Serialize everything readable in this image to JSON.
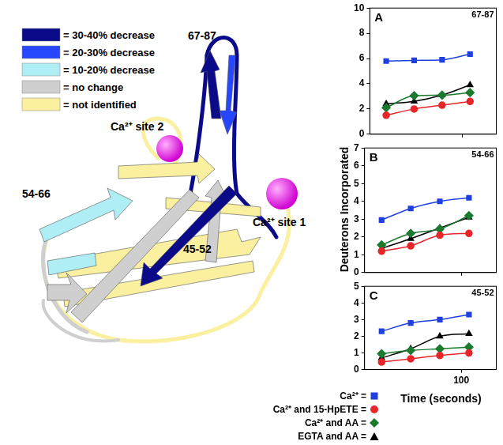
{
  "diagram": {
    "legend": [
      {
        "label": "= 30-40% decrease",
        "color": "#0b0b8a"
      },
      {
        "label": "= 20-30% decrease",
        "color": "#2747ff"
      },
      {
        "label": "= 10-20% decrease",
        "color": "#aeeef4"
      },
      {
        "label": "= no change",
        "color": "#cfcfcf"
      },
      {
        "label": "= not identified",
        "color": "#fbf0a0"
      }
    ],
    "labels": [
      "67-87",
      "Ca²⁺ site 2",
      "54-66",
      "45-52",
      "Ca²⁺ site 1"
    ]
  },
  "chart_data": [
    {
      "type": "line",
      "title": "A",
      "subtitle": "67-87",
      "x": [
        15,
        30,
        60,
        120
      ],
      "xlim": [
        10,
        230
      ],
      "xticks": [
        100
      ],
      "log": "x",
      "ylim": [
        0,
        10
      ],
      "yticks": [
        0,
        2,
        4,
        6,
        8,
        10
      ],
      "grid": false,
      "tick_labels": "y",
      "y_label": "Deuterons Incorporated",
      "series": [
        {
          "name": "Ca²⁺ =",
          "color": "#1f3fe0",
          "marker": "square",
          "values": [
            5.8,
            5.85,
            5.9,
            6.35
          ]
        },
        {
          "name": "Ca²⁺ and 15-HpETE =",
          "color": "#e8262a",
          "marker": "circle",
          "values": [
            1.5,
            2.0,
            2.3,
            2.6
          ]
        },
        {
          "name": "Ca²⁺ and AA =",
          "color": "#1a7a2e",
          "marker": "diamond",
          "values": [
            2.1,
            3.05,
            3.1,
            3.3
          ]
        },
        {
          "name": "EGTA and AA =",
          "color": "#000000",
          "marker": "triangle",
          "values": [
            2.4,
            2.6,
            3.1,
            3.9
          ]
        }
      ]
    },
    {
      "type": "line",
      "title": "B",
      "subtitle": "54-66",
      "x": [
        15,
        30,
        60,
        120
      ],
      "xlim": [
        10,
        230
      ],
      "xticks": [
        100
      ],
      "log": "x",
      "ylim": [
        0,
        7
      ],
      "yticks": [
        0,
        1,
        2,
        3,
        4,
        5,
        6,
        7
      ],
      "grid": false,
      "tick_labels": "y",
      "series": [
        {
          "name": "Ca²⁺ =",
          "color": "#1f3fe0",
          "marker": "square",
          "values": [
            2.95,
            3.6,
            4.0,
            4.2
          ]
        },
        {
          "name": "Ca²⁺ and 15-HpETE =",
          "color": "#e8262a",
          "marker": "circle",
          "values": [
            1.2,
            1.5,
            2.1,
            2.2
          ]
        },
        {
          "name": "Ca²⁺ and AA =",
          "color": "#1a7a2e",
          "marker": "diamond",
          "values": [
            1.55,
            2.2,
            2.45,
            3.2
          ]
        },
        {
          "name": "EGTA and AA =",
          "color": "#000000",
          "marker": "triangle",
          "values": [
            1.35,
            1.9,
            2.5,
            3.1
          ]
        }
      ]
    },
    {
      "type": "line",
      "title": "C",
      "subtitle": "45-52",
      "x": [
        15,
        30,
        60,
        120
      ],
      "xlim": [
        10,
        230
      ],
      "xticks": [
        100
      ],
      "log": "x",
      "ylim": [
        0,
        5
      ],
      "yticks": [
        0,
        1,
        2,
        3,
        4,
        5
      ],
      "grid": false,
      "tick_labels": true,
      "x_label": "Time (seconds)",
      "legend": "bottom left",
      "series": [
        {
          "name": "Ca²⁺ =",
          "color": "#1f3fe0",
          "marker": "square",
          "values": [
            2.3,
            2.8,
            3.0,
            3.3
          ]
        },
        {
          "name": "Ca²⁺ and 15-HpETE =",
          "color": "#e8262a",
          "marker": "circle",
          "values": [
            0.45,
            0.65,
            0.85,
            1.0
          ]
        },
        {
          "name": "Ca²⁺ and AA =",
          "color": "#1a7a2e",
          "marker": "diamond",
          "values": [
            0.95,
            1.15,
            1.25,
            1.35
          ]
        },
        {
          "name": "EGTA and AA =",
          "color": "#000000",
          "marker": "triangle",
          "values": [
            0.7,
            1.25,
            2.0,
            2.15
          ]
        }
      ]
    }
  ]
}
